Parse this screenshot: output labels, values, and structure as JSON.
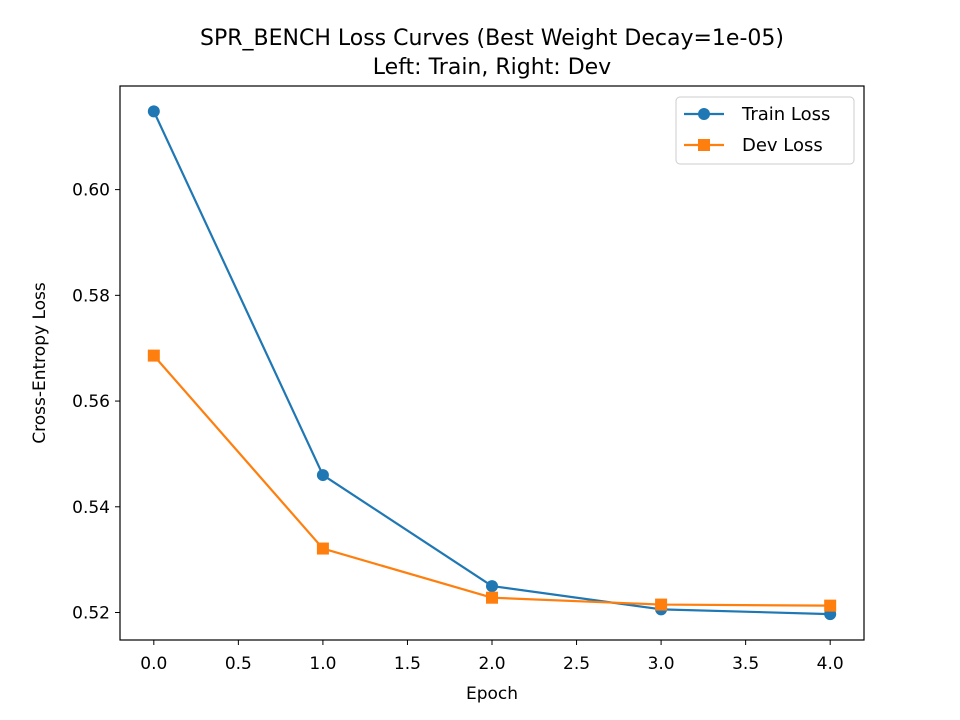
{
  "chart_data": {
    "type": "line",
    "title": "SPR_BENCH Loss Curves (Best Weight Decay=1e-05)",
    "subtitle": "Left: Train, Right: Dev",
    "xlabel": "Epoch",
    "ylabel": "Cross-Entropy Loss",
    "xlim": [
      -0.2,
      4.2
    ],
    "ylim": [
      0.5148,
      0.6196
    ],
    "xticks": [
      "0.0",
      "0.5",
      "1.0",
      "1.5",
      "2.0",
      "2.5",
      "3.0",
      "3.5",
      "4.0"
    ],
    "yticks": [
      "0.52",
      "0.54",
      "0.56",
      "0.58",
      "0.60"
    ],
    "grid": false,
    "legend_position": "top-right",
    "x": [
      0,
      1,
      2,
      3,
      4
    ],
    "series": [
      {
        "name": "Train Loss",
        "color": "#1f77b4",
        "marker": "circle",
        "values": [
          0.6148,
          0.546,
          0.525,
          0.5206,
          0.5197
        ]
      },
      {
        "name": "Dev Loss",
        "color": "#ff7f0e",
        "marker": "square",
        "values": [
          0.5686,
          0.5321,
          0.5228,
          0.5215,
          0.5213
        ]
      }
    ]
  }
}
